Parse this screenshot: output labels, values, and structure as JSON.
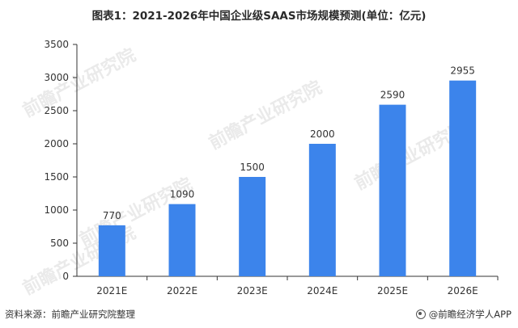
{
  "title": "图表1：2021-2026年中国企业级SAAS市场规模预测(单位：亿元)",
  "watermark_text": "前瞻产业研究院",
  "footer": {
    "source": "资料来源：前瞻产业研究院整理",
    "brand": "@前瞻经济学人APP",
    "brand_icon": "qianzhan-logo-icon"
  },
  "colors": {
    "bar": "#3c84eb",
    "axis": "#333333",
    "text": "#333333"
  },
  "chart_data": {
    "type": "bar",
    "categories": [
      "2021E",
      "2022E",
      "2023E",
      "2024E",
      "2025E",
      "2026E"
    ],
    "values": [
      770,
      1090,
      1500,
      2000,
      2590,
      2955
    ],
    "data_labels": [
      "770",
      "1090",
      "1500",
      "2000",
      "2590",
      "2955"
    ],
    "ylim": [
      0,
      3500
    ],
    "yticks": [
      0,
      500,
      1000,
      1500,
      2000,
      2500,
      3000,
      3500
    ],
    "xlabel": "",
    "ylabel": "",
    "grid": false,
    "legend": "none"
  }
}
